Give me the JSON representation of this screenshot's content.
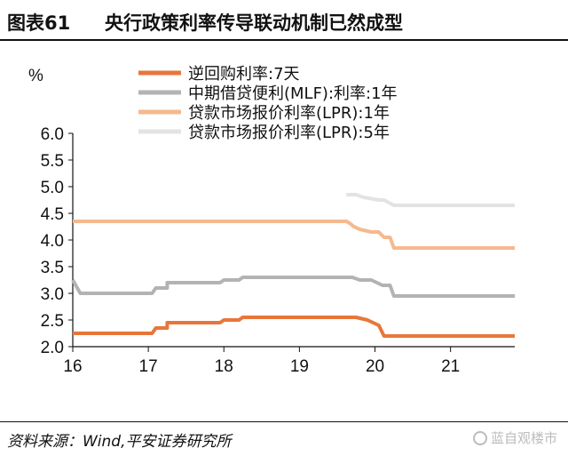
{
  "header": {
    "figure_no": "图表61",
    "title": "央行政策利率传导联动机制已然成型"
  },
  "footer": {
    "source": "资料来源：Wind,平安证券研究所",
    "watermark": "蓝自观楼市"
  },
  "chart_data": {
    "type": "line",
    "unit_label": "%",
    "ylim": [
      2.0,
      6.0
    ],
    "y_ticks": [
      "2.0",
      "2.5",
      "3.0",
      "3.5",
      "4.0",
      "4.5",
      "5.0",
      "5.5",
      "6.0"
    ],
    "y_tick_values": [
      2.0,
      2.5,
      3.0,
      3.5,
      4.0,
      4.5,
      5.0,
      5.5,
      6.0
    ],
    "xlim": [
      2016.0,
      2021.85
    ],
    "x_ticks": [
      "16",
      "17",
      "18",
      "19",
      "20",
      "21"
    ],
    "x_tick_values": [
      2016,
      2017,
      2018,
      2019,
      2020,
      2021
    ],
    "legend_position": "top",
    "grid": false,
    "series": [
      {
        "name": "逆回购利率:7天",
        "color": "#e8763a",
        "points": [
          [
            2016.0,
            2.25
          ],
          [
            2017.05,
            2.25
          ],
          [
            2017.1,
            2.35
          ],
          [
            2017.25,
            2.35
          ],
          [
            2017.25,
            2.45
          ],
          [
            2017.95,
            2.45
          ],
          [
            2018.0,
            2.5
          ],
          [
            2018.2,
            2.5
          ],
          [
            2018.25,
            2.55
          ],
          [
            2019.75,
            2.55
          ],
          [
            2019.9,
            2.5
          ],
          [
            2020.05,
            2.4
          ],
          [
            2020.12,
            2.2
          ],
          [
            2021.85,
            2.2
          ]
        ]
      },
      {
        "name": "中期借贷便利(MLF):利率:1年",
        "color": "#b3b3b3",
        "points": [
          [
            2016.0,
            3.25
          ],
          [
            2016.1,
            3.0
          ],
          [
            2017.05,
            3.0
          ],
          [
            2017.1,
            3.1
          ],
          [
            2017.25,
            3.1
          ],
          [
            2017.25,
            3.2
          ],
          [
            2017.95,
            3.2
          ],
          [
            2018.0,
            3.25
          ],
          [
            2018.2,
            3.25
          ],
          [
            2018.25,
            3.3
          ],
          [
            2019.7,
            3.3
          ],
          [
            2019.8,
            3.25
          ],
          [
            2019.95,
            3.25
          ],
          [
            2020.1,
            3.15
          ],
          [
            2020.2,
            3.15
          ],
          [
            2020.25,
            2.95
          ],
          [
            2021.85,
            2.95
          ]
        ]
      },
      {
        "name": "贷款市场报价利率(LPR):1年",
        "color": "#f5b98f",
        "points": [
          [
            2016.0,
            4.35
          ],
          [
            2019.62,
            4.35
          ],
          [
            2019.67,
            4.31
          ],
          [
            2019.72,
            4.25
          ],
          [
            2019.8,
            4.2
          ],
          [
            2019.95,
            4.15
          ],
          [
            2020.05,
            4.15
          ],
          [
            2020.12,
            4.05
          ],
          [
            2020.2,
            4.05
          ],
          [
            2020.25,
            3.85
          ],
          [
            2021.85,
            3.85
          ]
        ]
      },
      {
        "name": "贷款市场报价利率(LPR):5年",
        "color": "#e3e3e3",
        "points": [
          [
            2019.62,
            4.85
          ],
          [
            2019.75,
            4.85
          ],
          [
            2019.85,
            4.8
          ],
          [
            2020.05,
            4.75
          ],
          [
            2020.12,
            4.75
          ],
          [
            2020.25,
            4.65
          ],
          [
            2021.85,
            4.65
          ]
        ]
      }
    ]
  }
}
